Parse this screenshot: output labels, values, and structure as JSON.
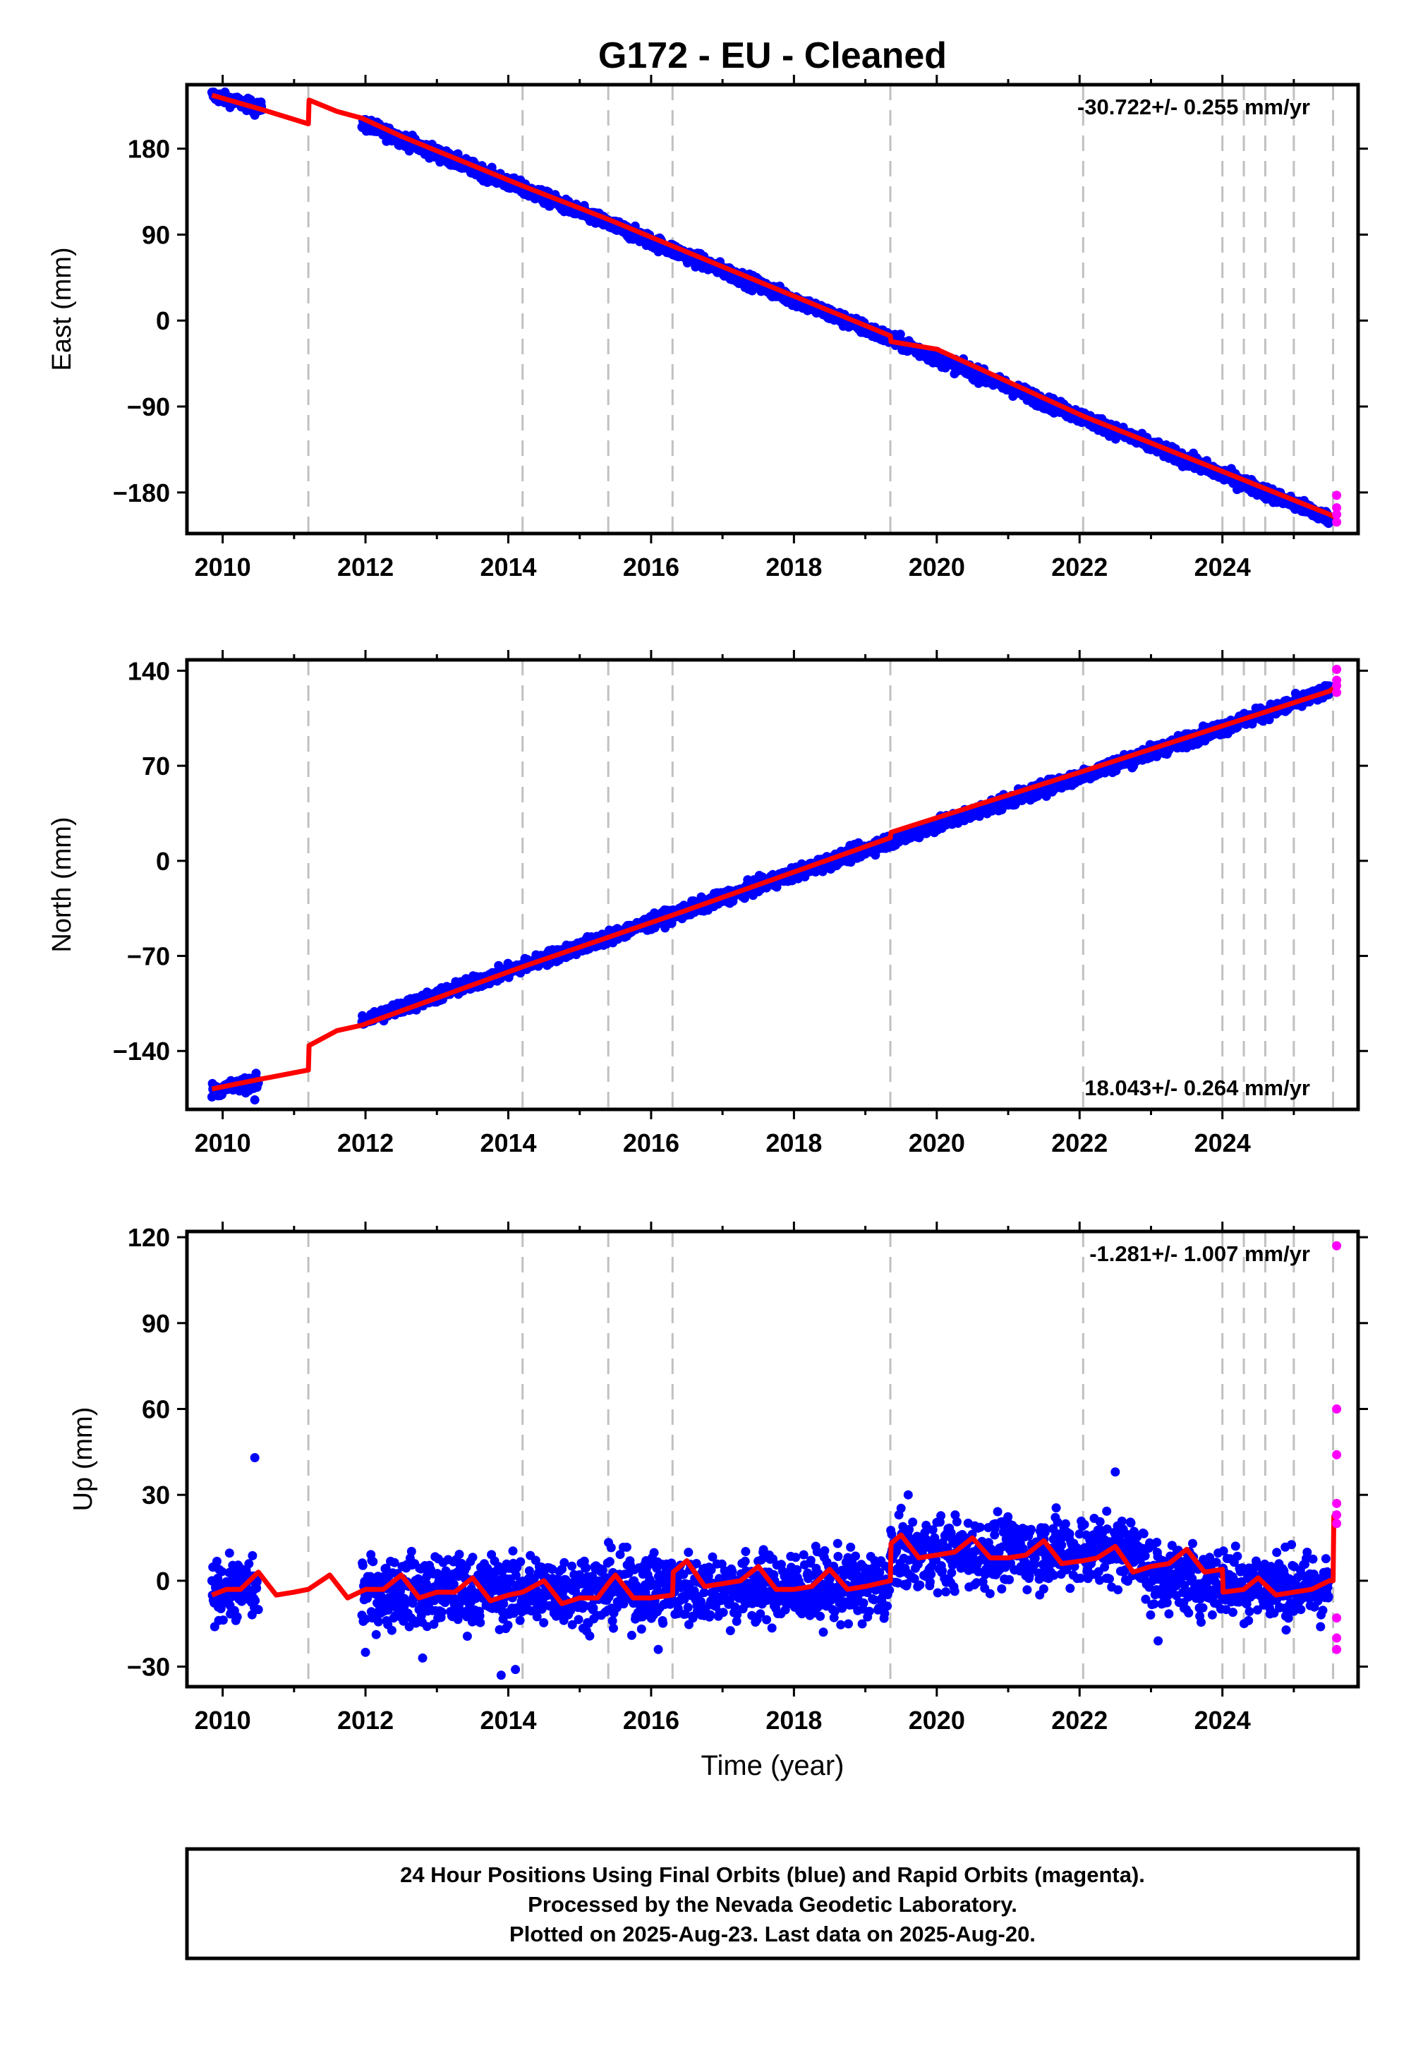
{
  "figure_title": "G172  - EU - Cleaned",
  "colors": {
    "final_orbits": "#0000ff",
    "rapid_orbits": "#ff00ff",
    "model": "#ff0000",
    "event_lines": "#c0c0c0",
    "frame": "#000000"
  },
  "chart_data": [
    {
      "type": "scatter",
      "name": "east",
      "ylabel": "East (mm)",
      "xlim": [
        2009.5,
        2025.9
      ],
      "ylim": [
        -223,
        247
      ],
      "yticks": [
        -180,
        -90,
        0,
        90,
        180
      ],
      "ytick_labels": [
        "−180",
        "−90",
        "0",
        "90",
        "180"
      ],
      "xticks": [
        2010,
        2012,
        2014,
        2016,
        2018,
        2020,
        2022,
        2024
      ],
      "xtick_labels": [
        "2010",
        "2012",
        "2014",
        "2016",
        "2018",
        "2020",
        "2022",
        "2024"
      ],
      "rate_label": "-30.722+/- 0.255 mm/yr",
      "rate_position": "top-right",
      "grid": false,
      "event_lines_x": [
        2011.2,
        2014.2,
        2015.4,
        2016.3,
        2019.35,
        2022.05,
        2024.0,
        2024.3,
        2024.6,
        2025.0,
        2025.55
      ],
      "final_segments": [
        {
          "x0": 2009.85,
          "x1": 2010.55,
          "y0": 236,
          "y1": 222,
          "noise": 3
        },
        {
          "x0": 2011.95,
          "x1": 2025.5,
          "y0": 207,
          "y1": -207,
          "noise": 3.5
        }
      ],
      "outliers": [
        {
          "x": 2010.45,
          "y": 215
        }
      ],
      "model_line": [
        [
          2009.85,
          236
        ],
        [
          2010.55,
          221
        ],
        [
          2011.2,
          206
        ],
        [
          2011.21,
          231
        ],
        [
          2011.6,
          219
        ],
        [
          2011.95,
          212
        ],
        [
          2012.5,
          193
        ],
        [
          2014.2,
          141
        ],
        [
          2015.4,
          106
        ],
        [
          2016.3,
          78
        ],
        [
          2019.35,
          -16
        ],
        [
          2019.36,
          -22
        ],
        [
          2020.0,
          -30
        ],
        [
          2022.05,
          -100
        ],
        [
          2024.0,
          -158
        ],
        [
          2025.5,
          -203
        ],
        [
          2025.6,
          -207
        ]
      ],
      "rapid_points": [
        {
          "x": 2025.6,
          "y": -183
        },
        {
          "x": 2025.6,
          "y": -196
        },
        {
          "x": 2025.6,
          "y": -203
        },
        {
          "x": 2025.6,
          "y": -211
        }
      ]
    },
    {
      "type": "scatter",
      "name": "north",
      "ylabel": "North (mm)",
      "xlim": [
        2009.5,
        2025.9
      ],
      "ylim": [
        -183,
        148
      ],
      "yticks": [
        -140,
        -70,
        0,
        70,
        140
      ],
      "ytick_labels": [
        "−140",
        "−70",
        "0",
        "70",
        "140"
      ],
      "xticks": [
        2010,
        2012,
        2014,
        2016,
        2018,
        2020,
        2022,
        2024
      ],
      "xtick_labels": [
        "2010",
        "2012",
        "2014",
        "2016",
        "2018",
        "2020",
        "2022",
        "2024"
      ],
      "rate_label": "18.043+/- 0.264 mm/yr",
      "rate_position": "bottom-right",
      "grid": false,
      "event_lines_x": [
        2011.2,
        2014.2,
        2015.4,
        2016.3,
        2019.35,
        2022.05,
        2024.0,
        2024.3,
        2024.6,
        2025.0,
        2025.55
      ],
      "final_segments": [
        {
          "x0": 2009.85,
          "x1": 2010.5,
          "y0": -169,
          "y1": -163,
          "noise": 2.5
        },
        {
          "x0": 2011.95,
          "x1": 2025.5,
          "y0": -118,
          "y1": 125,
          "noise": 2.5
        }
      ],
      "outliers": [
        {
          "x": 2010.45,
          "y": -176
        }
      ],
      "model_line": [
        [
          2009.85,
          -168
        ],
        [
          2010.5,
          -161
        ],
        [
          2011.2,
          -154
        ],
        [
          2011.21,
          -136
        ],
        [
          2011.6,
          -125
        ],
        [
          2011.95,
          -121
        ],
        [
          2014.2,
          -78
        ],
        [
          2016.3,
          -40
        ],
        [
          2019.35,
          17
        ],
        [
          2019.36,
          21
        ],
        [
          2022.05,
          66
        ],
        [
          2025.5,
          125
        ],
        [
          2025.6,
          129
        ]
      ],
      "rapid_points": [
        {
          "x": 2025.6,
          "y": 141
        },
        {
          "x": 2025.6,
          "y": 133
        },
        {
          "x": 2025.6,
          "y": 129
        },
        {
          "x": 2025.6,
          "y": 124
        }
      ]
    },
    {
      "type": "scatter",
      "name": "up",
      "ylabel": "Up (mm)",
      "xlabel": "Time (year)",
      "xlim": [
        2009.5,
        2025.9
      ],
      "ylim": [
        -37,
        122
      ],
      "yticks": [
        -30,
        0,
        30,
        60,
        90,
        120
      ],
      "ytick_labels": [
        "−30",
        "0",
        "30",
        "60",
        "90",
        "120"
      ],
      "xticks": [
        2010,
        2012,
        2014,
        2016,
        2018,
        2020,
        2022,
        2024
      ],
      "xtick_labels": [
        "2010",
        "2012",
        "2014",
        "2016",
        "2018",
        "2020",
        "2022",
        "2024"
      ],
      "rate_label": "-1.281+/- 1.007 mm/yr",
      "rate_position": "top-right",
      "grid": false,
      "event_lines_x": [
        2011.2,
        2014.2,
        2015.4,
        2016.3,
        2019.35,
        2022.05,
        2024.0,
        2024.3,
        2024.6,
        2025.0,
        2025.55
      ],
      "final_segments": [
        {
          "x0": 2009.85,
          "x1": 2010.5,
          "y0": -3,
          "y1": -3,
          "noise": 5
        },
        {
          "x0": 2011.95,
          "x1": 2019.35,
          "y0": -4,
          "y1": -2,
          "noise": 6
        },
        {
          "x0": 2019.35,
          "x1": 2022.9,
          "y0": 9,
          "y1": 11,
          "noise": 6
        },
        {
          "x0": 2022.9,
          "x1": 2025.5,
          "y0": 2,
          "y1": -3,
          "noise": 6
        }
      ],
      "outliers": [
        {
          "x": 2010.45,
          "y": 43
        },
        {
          "x": 2013.9,
          "y": -33
        },
        {
          "x": 2014.1,
          "y": -31
        },
        {
          "x": 2012.0,
          "y": -25
        },
        {
          "x": 2012.8,
          "y": -27
        },
        {
          "x": 2016.1,
          "y": -24
        },
        {
          "x": 2019.6,
          "y": 30
        },
        {
          "x": 2022.5,
          "y": 38
        },
        {
          "x": 2023.1,
          "y": -21
        }
      ],
      "model_line": [
        [
          2009.85,
          -5
        ],
        [
          2010.05,
          -3
        ],
        [
          2010.25,
          -3
        ],
        [
          2010.5,
          3
        ],
        [
          2010.75,
          -5
        ],
        [
          2011.0,
          -4
        ],
        [
          2011.2,
          -3
        ],
        [
          2011.5,
          2
        ],
        [
          2011.75,
          -6
        ],
        [
          2012.0,
          -3
        ],
        [
          2012.25,
          -3
        ],
        [
          2012.5,
          2
        ],
        [
          2012.75,
          -6
        ],
        [
          2013.0,
          -4
        ],
        [
          2013.25,
          -4
        ],
        [
          2013.5,
          1
        ],
        [
          2013.75,
          -7
        ],
        [
          2014.0,
          -5
        ],
        [
          2014.2,
          -4
        ],
        [
          2014.5,
          0
        ],
        [
          2014.75,
          -8
        ],
        [
          2015.0,
          -6
        ],
        [
          2015.25,
          -6
        ],
        [
          2015.4,
          -1
        ],
        [
          2015.5,
          2
        ],
        [
          2015.75,
          -6
        ],
        [
          2016.0,
          -6
        ],
        [
          2016.3,
          -5
        ],
        [
          2016.31,
          3
        ],
        [
          2016.5,
          7
        ],
        [
          2016.75,
          -2
        ],
        [
          2017.0,
          -1
        ],
        [
          2017.25,
          0
        ],
        [
          2017.5,
          5
        ],
        [
          2017.75,
          -3
        ],
        [
          2018.0,
          -3
        ],
        [
          2018.25,
          -2
        ],
        [
          2018.5,
          4
        ],
        [
          2018.75,
          -3
        ],
        [
          2019.0,
          -2
        ],
        [
          2019.35,
          0
        ],
        [
          2019.36,
          13
        ],
        [
          2019.5,
          16
        ],
        [
          2019.75,
          8
        ],
        [
          2020.0,
          9
        ],
        [
          2020.25,
          10
        ],
        [
          2020.5,
          15
        ],
        [
          2020.75,
          8
        ],
        [
          2021.0,
          8
        ],
        [
          2021.25,
          9
        ],
        [
          2021.5,
          14
        ],
        [
          2021.75,
          6
        ],
        [
          2022.05,
          7
        ],
        [
          2022.25,
          8
        ],
        [
          2022.5,
          12
        ],
        [
          2022.75,
          3
        ],
        [
          2023.0,
          5
        ],
        [
          2023.25,
          6
        ],
        [
          2023.5,
          11
        ],
        [
          2023.75,
          3
        ],
        [
          2024.0,
          4
        ],
        [
          2024.01,
          -4
        ],
        [
          2024.3,
          -3
        ],
        [
          2024.5,
          1
        ],
        [
          2024.75,
          -5
        ],
        [
          2025.0,
          -4
        ],
        [
          2025.25,
          -3
        ],
        [
          2025.5,
          0
        ],
        [
          2025.55,
          0
        ],
        [
          2025.56,
          23
        ]
      ],
      "rapid_points": [
        {
          "x": 2025.6,
          "y": 117
        },
        {
          "x": 2025.6,
          "y": 60
        },
        {
          "x": 2025.6,
          "y": 44
        },
        {
          "x": 2025.6,
          "y": 27
        },
        {
          "x": 2025.6,
          "y": 23
        },
        {
          "x": 2025.6,
          "y": 20
        },
        {
          "x": 2025.6,
          "y": -13
        },
        {
          "x": 2025.6,
          "y": -20
        },
        {
          "x": 2025.6,
          "y": -24
        }
      ]
    }
  ],
  "footer": {
    "line1": "24 Hour Positions Using Final Orbits (blue) and Rapid Orbits (magenta).",
    "line2": "Processed by the Nevada Geodetic Laboratory.",
    "line3": "Plotted on 2025-Aug-23. Last data on 2025-Aug-20."
  }
}
